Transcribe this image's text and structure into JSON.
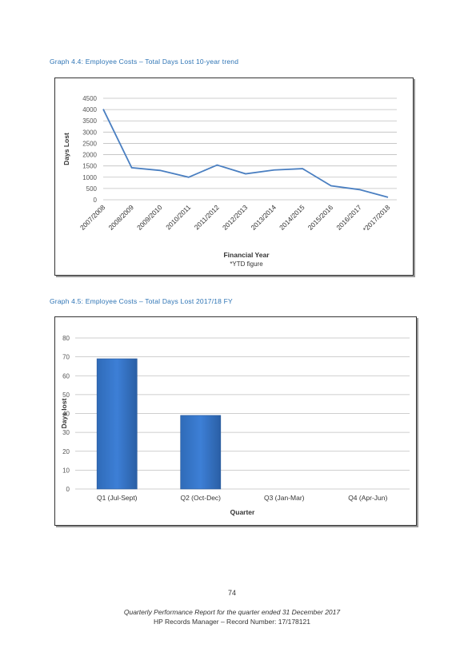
{
  "graph44": {
    "caption": "Graph 4.4: Employee Costs – Total Days Lost 10-year trend"
  },
  "graph45": {
    "caption": "Graph 4.5: Employee Costs – Total Days Lost 2017/18 FY"
  },
  "page_number": "74",
  "footer": {
    "line1": "Quarterly Performance Report for the quarter ended 31 December 2017",
    "line2": "HP Records Manager – Record Number: 17/178121"
  },
  "colors": {
    "line": "#4a7fc1",
    "bar": "#3d7fd6",
    "caption": "#2e74b5",
    "grid": "#bfbfbf"
  },
  "chart_data": [
    {
      "type": "line",
      "title": "",
      "xlabel": "Financial Year",
      "ylabel": "Days Lost",
      "note": "*YTD figure",
      "categories": [
        "2007/2008",
        "2008/2009",
        "2009/2010",
        "2010/2011",
        "2011/2012",
        "2012/2013",
        "2013/2014",
        "2014/2015",
        "2015/2016",
        "2016/2017",
        "*2017/2018"
      ],
      "values": [
        4020,
        1420,
        1300,
        1000,
        1540,
        1150,
        1320,
        1380,
        620,
        450,
        110
      ],
      "yticks": [
        0,
        500,
        1000,
        1500,
        2000,
        2500,
        3000,
        3500,
        4000,
        4500
      ],
      "ylim": [
        0,
        4500
      ],
      "grid": true,
      "legend": "none"
    },
    {
      "type": "bar",
      "title": "",
      "xlabel": "Quarter",
      "ylabel": "Days lost",
      "categories": [
        "Q1 (Jul-Sept)",
        "Q2 (Oct-Dec)",
        "Q3 (Jan-Mar)",
        "Q4 (Apr-Jun)"
      ],
      "values": [
        69,
        39,
        null,
        null
      ],
      "yticks": [
        0,
        10,
        20,
        30,
        40,
        50,
        60,
        70,
        80
      ],
      "ylim": [
        0,
        80
      ],
      "grid": true,
      "legend": "none"
    }
  ]
}
